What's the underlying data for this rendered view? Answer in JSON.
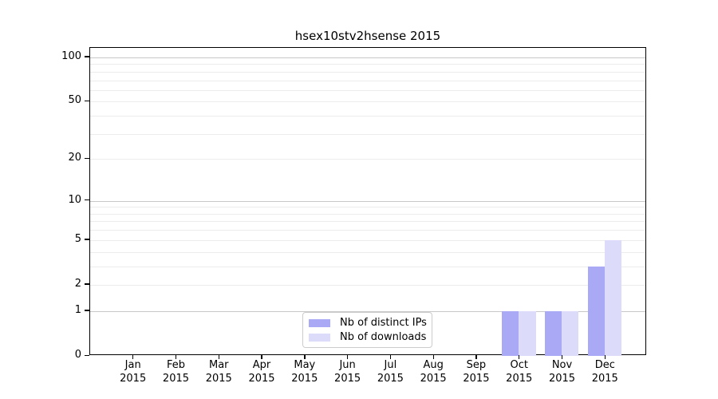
{
  "chart_data": {
    "type": "bar",
    "title": "hsex10stv2hsense 2015",
    "categories": [
      "Jan",
      "Feb",
      "Mar",
      "Apr",
      "May",
      "Jun",
      "Jul",
      "Aug",
      "Sep",
      "Oct",
      "Nov",
      "Dec"
    ],
    "year_label": "2015",
    "series": [
      {
        "name": "Nb of distinct IPs",
        "color": "#a9a9f5",
        "values": [
          0,
          0,
          0,
          0,
          0,
          0,
          0,
          0,
          0,
          1,
          1,
          3
        ]
      },
      {
        "name": "Nb of downloads",
        "color": "#dcdcfa",
        "values": [
          0,
          0,
          0,
          0,
          0,
          0,
          0,
          0,
          0,
          1,
          1,
          5
        ]
      }
    ],
    "xlabel": "",
    "ylabel": "",
    "y_scale": "log10(value+1)",
    "ylim": [
      0,
      115
    ],
    "y_ticks": [
      0,
      1,
      2,
      5,
      10,
      20,
      50,
      100
    ],
    "y_minor_ticks": [
      3,
      4,
      6,
      7,
      8,
      9,
      30,
      40,
      60,
      70,
      80,
      90
    ],
    "y_grid_major": [
      1,
      10,
      100
    ],
    "grid": true,
    "legend_position": "lower-center-inside"
  },
  "legend": {
    "items": [
      {
        "label": "Nb of distinct IPs",
        "color": "#a9a9f5"
      },
      {
        "label": "Nb of downloads",
        "color": "#dcdcfa"
      }
    ]
  },
  "colors": {
    "major_grid": "#c8c8c8",
    "minor_grid": "#ececec",
    "spine": "#000000",
    "background": "#ffffff"
  }
}
